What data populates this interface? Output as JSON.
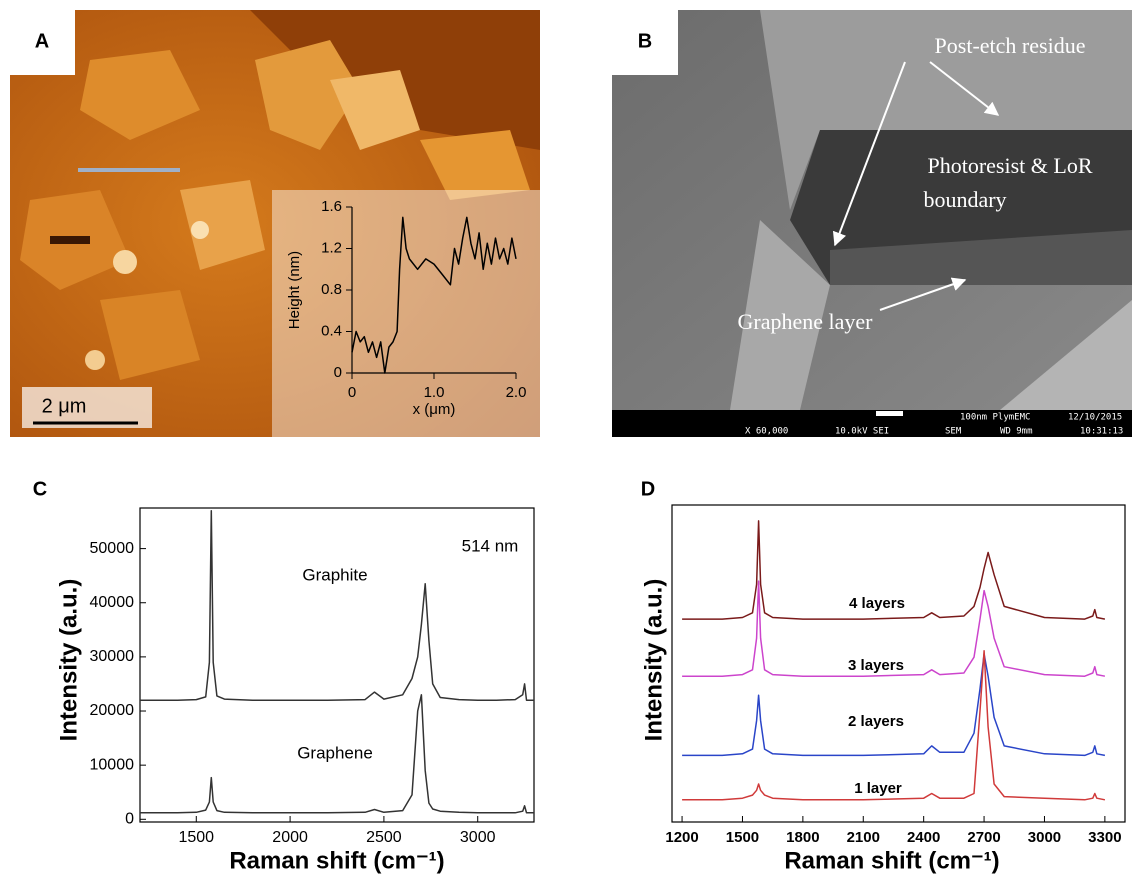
{
  "panel_labels": [
    "A",
    "B",
    "C",
    "D"
  ],
  "afm_image": {
    "scale_bar": "2 μm"
  },
  "sem_image": {
    "annotations": {
      "residue": "Post-etch residue",
      "boundary": [
        "Photoresist & LoR",
        "boundary"
      ],
      "graphene": "Graphene layer"
    },
    "info_bar": [
      "100nm PlymEMC",
      "12/10/2015",
      "X 60,000",
      "10.0kV SEI",
      "SEM",
      "WD 9mm",
      "10:31:13"
    ]
  },
  "chart_data": [
    {
      "type": "line",
      "xlabel": "x (μm)",
      "ylabel": "Height (nm)",
      "x": [
        0,
        0.05,
        0.1,
        0.15,
        0.2,
        0.25,
        0.3,
        0.35,
        0.4,
        0.45,
        0.5,
        0.55,
        0.58,
        0.62,
        0.66,
        0.7,
        0.8,
        0.9,
        1.0,
        1.1,
        1.2,
        1.25,
        1.3,
        1.35,
        1.4,
        1.45,
        1.5,
        1.55,
        1.6,
        1.65,
        1.7,
        1.75,
        1.8,
        1.85,
        1.9,
        1.95,
        2.0
      ],
      "series": [
        {
          "color": "#000000",
          "values": [
            0.2,
            0.4,
            0.3,
            0.35,
            0.2,
            0.3,
            0.15,
            0.3,
            0.0,
            0.25,
            0.3,
            0.4,
            1.0,
            1.5,
            1.2,
            1.1,
            1.0,
            1.1,
            1.05,
            0.95,
            0.85,
            1.2,
            1.05,
            1.3,
            1.5,
            1.25,
            1.1,
            1.35,
            1.0,
            1.25,
            1.05,
            1.3,
            1.1,
            1.2,
            1.05,
            1.3,
            1.1
          ]
        }
      ],
      "xlim": [
        0,
        2.0
      ],
      "ylim": [
        0,
        1.6
      ],
      "xticks": [
        0,
        {
          "value": 1.0,
          "label": "1.0"
        },
        {
          "value": 2.0,
          "label": "2.0"
        }
      ],
      "yticks": [
        0,
        0.4,
        0.8,
        1.2,
        1.6
      ]
    },
    {
      "type": "line",
      "xlabel": "Raman shift (cm⁻¹)",
      "ylabel": "Intensity (a.u.)",
      "annotation": "514 nm",
      "x": [
        1200,
        1300,
        1400,
        1500,
        1550,
        1570,
        1580,
        1590,
        1610,
        1650,
        1800,
        2000,
        2200,
        2400,
        2450,
        2500,
        2600,
        2650,
        2680,
        2700,
        2720,
        2740,
        2760,
        2800,
        2900,
        3000,
        3100,
        3200,
        3240,
        3250,
        3260,
        3300
      ],
      "series": [
        {
          "name": "Graphite",
          "color": "#333333",
          "values": [
            22000,
            22000,
            22000,
            22100,
            22600,
            29000,
            57000,
            29000,
            22800,
            22200,
            22000,
            22000,
            22000,
            22100,
            23500,
            22200,
            23000,
            26000,
            30000,
            36000,
            43500,
            33000,
            25000,
            22500,
            22100,
            22000,
            22000,
            22100,
            23000,
            25000,
            22000,
            22000
          ]
        },
        {
          "name": "Graphene",
          "color": "#333333",
          "values": [
            1200,
            1200,
            1200,
            1300,
            1700,
            3200,
            7700,
            3200,
            1600,
            1300,
            1200,
            1200,
            1200,
            1300,
            1800,
            1300,
            1600,
            4500,
            20000,
            23000,
            9000,
            3000,
            1900,
            1500,
            1300,
            1200,
            1200,
            1200,
            1500,
            2500,
            1200,
            1200
          ]
        }
      ],
      "xlim": [
        1200,
        3300
      ],
      "ylim": [
        -500,
        57500
      ],
      "xticks": [
        1500,
        2000,
        2500,
        3000
      ],
      "yticks": [
        0,
        10000,
        20000,
        30000,
        40000,
        50000
      ]
    },
    {
      "type": "line",
      "xlabel": "Raman shift (cm⁻¹)",
      "ylabel": "Intensity (a.u.)",
      "x": [
        1200,
        1400,
        1500,
        1550,
        1570,
        1580,
        1590,
        1610,
        1650,
        1800,
        2100,
        2400,
        2440,
        2480,
        2600,
        2650,
        2680,
        2700,
        2720,
        2750,
        2800,
        3000,
        3200,
        3240,
        3250,
        3260,
        3300
      ],
      "series": [
        {
          "name": "4 layers",
          "color": "#7a1a1a",
          "values": [
            64,
            64,
            64.5,
            66,
            75,
            95,
            75,
            66,
            64.5,
            64,
            64,
            64.5,
            66,
            64.5,
            65,
            68,
            74,
            80,
            85,
            78,
            68,
            64.5,
            64,
            65,
            67,
            64.5,
            64
          ]
        },
        {
          "name": "3 layers",
          "color": "#cc44cc",
          "values": [
            46,
            46,
            46.5,
            48,
            58,
            76,
            58,
            48,
            46.5,
            46,
            46,
            46.5,
            48,
            46.5,
            47,
            52,
            64,
            73,
            68,
            58,
            49,
            46.5,
            46,
            47,
            49,
            46.5,
            46
          ]
        },
        {
          "name": "2 layers",
          "color": "#2a45c8",
          "values": [
            21,
            21,
            21.5,
            23,
            32,
            40,
            32,
            23,
            21.5,
            21,
            21,
            21.5,
            24,
            22,
            22,
            28,
            42,
            53,
            46,
            33,
            24,
            21.5,
            21,
            22,
            24,
            21.5,
            21
          ]
        },
        {
          "name": "1 layer",
          "color": "#d03a3a",
          "values": [
            7,
            7,
            7.5,
            8.5,
            10,
            12,
            10,
            8.5,
            7.5,
            7,
            7,
            7.5,
            9,
            7.5,
            7.5,
            9,
            35,
            54,
            30,
            12,
            8,
            7.5,
            7,
            7.5,
            9,
            7.5,
            7
          ]
        }
      ],
      "xlim": [
        1150,
        3400
      ],
      "ylim": [
        0,
        100
      ],
      "xticks": [
        1200,
        1500,
        1800,
        2100,
        2400,
        2700,
        3000,
        3300
      ]
    }
  ]
}
